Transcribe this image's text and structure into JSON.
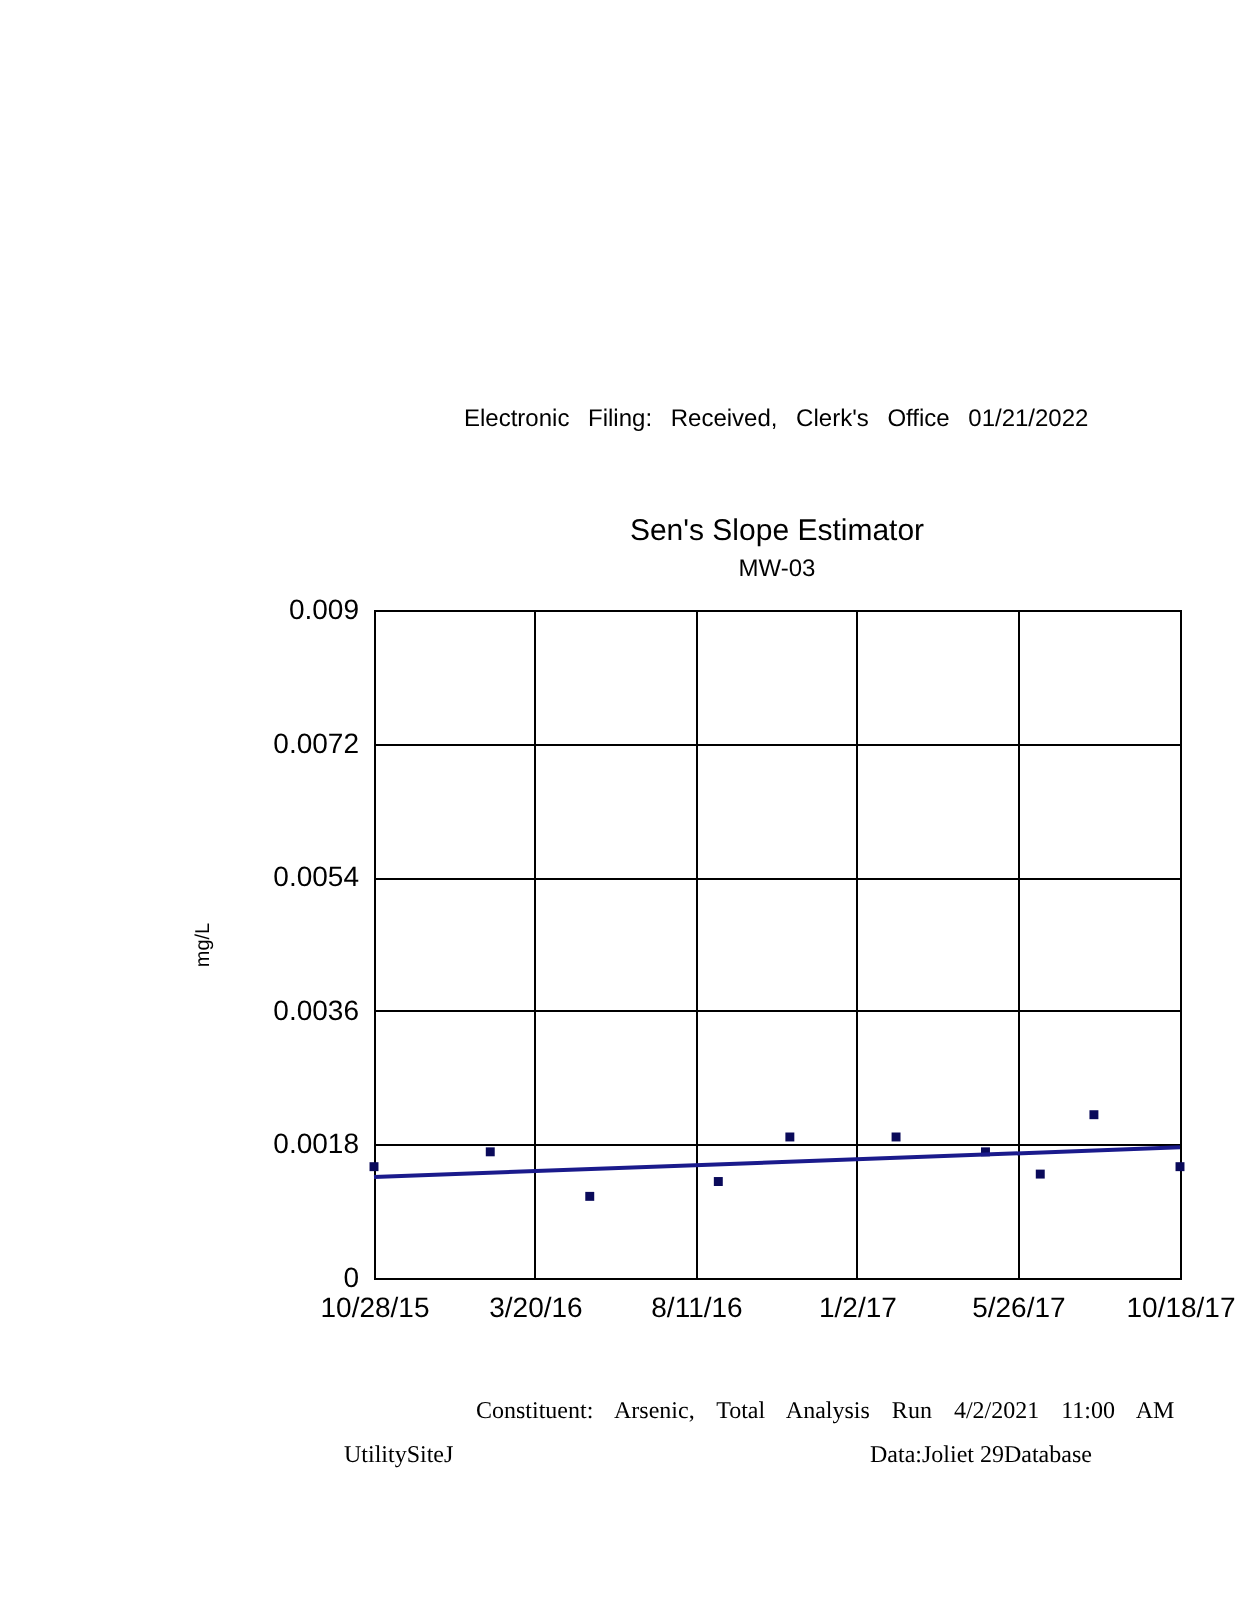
{
  "chart_data": {
    "type": "scatter",
    "title": "Sen's Slope Estimator",
    "subtitle": "MW-03",
    "ylabel": "mg/L",
    "annotations": [
      "Electronic Filing: Received, Clerk's Office 01/21/2022",
      "Constituent: Arsenic, Total Analysis Run 4/2/2021 11:00 AM",
      "UtilitySiteJ",
      "Data:Joliet 29Database"
    ],
    "series": [
      {
        "type": "scatter",
        "color": "#0a0a5a",
        "marker": "square",
        "x": [
          "2015-10-28",
          "2016-02-09",
          "2016-05-08",
          "2016-08-31",
          "2016-11-03",
          "2017-02-06",
          "2017-04-27",
          "2017-06-15",
          "2017-08-02",
          "2017-10-18"
        ],
        "values": [
          0.0015,
          0.0017,
          0.0011,
          0.0013,
          0.0019,
          0.0019,
          0.0017,
          0.0014,
          0.0022,
          0.0015
        ]
      },
      {
        "type": "line",
        "color": "#1a1a8c",
        "marker": "none",
        "x": [
          "2015-10-28",
          "2017-10-18"
        ],
        "values": [
          0.00136,
          0.00176
        ]
      }
    ],
    "xlim": [
      "2015-10-28",
      "2017-10-18"
    ],
    "xticks": [
      {
        "value": "2015-10-28",
        "label": "10/28/15"
      },
      {
        "value": "2016-03-20",
        "label": "3/20/16"
      },
      {
        "value": "2016-08-11",
        "label": "8/11/16"
      },
      {
        "value": "2017-01-02",
        "label": "1/2/17"
      },
      {
        "value": "2017-05-26",
        "label": "5/26/17"
      },
      {
        "value": "2017-10-18",
        "label": "10/18/17"
      }
    ],
    "ylim": [
      0,
      0.009
    ],
    "yticks": [
      0,
      0.0018,
      0.0036,
      0.0054,
      0.0072,
      0.009
    ],
    "grid": true,
    "line_style": "solid"
  }
}
